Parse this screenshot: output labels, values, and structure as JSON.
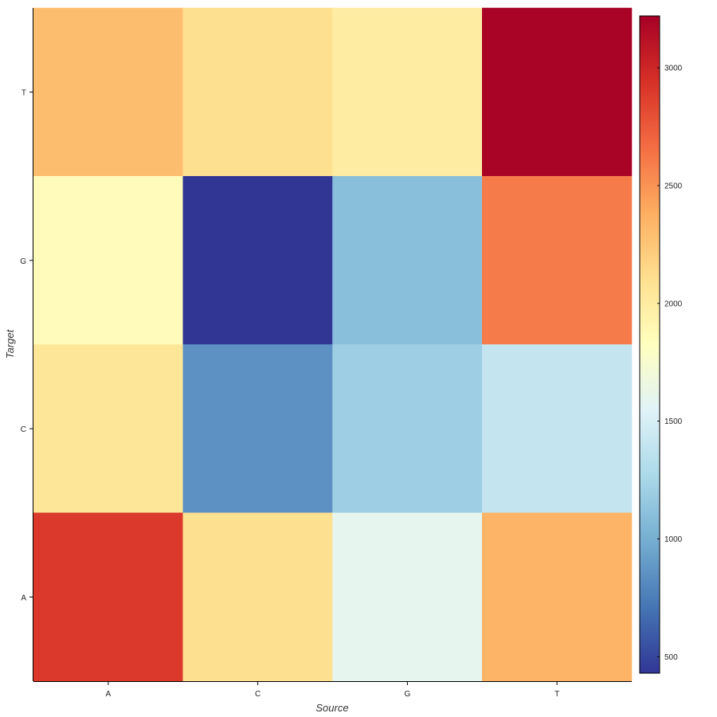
{
  "chart_data": {
    "type": "heatmap",
    "xlabel": "Source",
    "ylabel": "Target",
    "x_categories": [
      "A",
      "C",
      "G",
      "T"
    ],
    "y_categories": [
      "A",
      "C",
      "G",
      "T"
    ],
    "rows": [
      {
        "target": "T",
        "values": [
          2300,
          2100,
          2000,
          3200
        ]
      },
      {
        "target": "G",
        "values": [
          1850,
          430,
          1100,
          2600
        ]
      },
      {
        "target": "C",
        "values": [
          2050,
          850,
          1200,
          1400
        ]
      },
      {
        "target": "A",
        "values": [
          2900,
          2100,
          1600,
          2350
        ]
      }
    ],
    "colorbar": {
      "min": 430,
      "max": 3220,
      "ticks": [
        500,
        1000,
        1500,
        2000,
        2500,
        3000
      ],
      "colormap": "RdYlBu_r",
      "colors": [
        "#313695",
        "#4575b4",
        "#74add1",
        "#abd9e9",
        "#e0f3f8",
        "#ffffbf",
        "#fee090",
        "#fdae61",
        "#f46d43",
        "#d73027",
        "#a50026"
      ]
    },
    "grid": false
  }
}
